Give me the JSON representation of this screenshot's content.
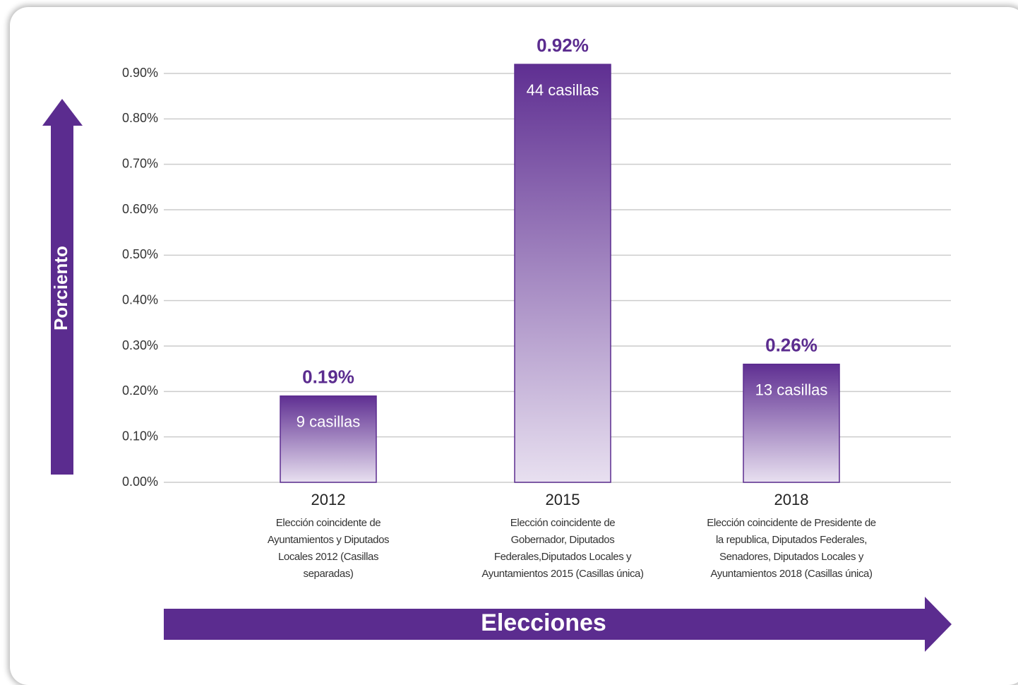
{
  "chart_data": {
    "type": "bar",
    "y_axis_label": "Porciento",
    "x_axis_label": "Elecciones",
    "categories": [
      "2012",
      "2015",
      "2018"
    ],
    "descriptions": [
      "Elección coincidente de Ayuntamientos y Diputados Locales 2012 (Casillas separadas)",
      "Elección coincidente de Gobernador, Diputados Federales,Diputados Locales y Ayuntamientos 2015 (Casillas única)",
      "Elección coincidente de Presidente de la republica, Diputados Federales, Senadores, Diputados Locales y Ayuntamientos 2018 (Casillas única)"
    ],
    "values": [
      0.19,
      0.92,
      0.26
    ],
    "value_labels": [
      "0.19%",
      "0.92%",
      "0.26%"
    ],
    "bar_labels": [
      "9 casillas",
      "44 casillas",
      "13 casillas"
    ],
    "color": "#5b2c8f",
    "ylim": [
      0,
      0.9
    ],
    "yticks": [
      {
        "value": 0,
        "label": "0.00%"
      },
      {
        "value": 0.1,
        "label": "0.10%"
      },
      {
        "value": 0.2,
        "label": "0.20%"
      },
      {
        "value": 0.3,
        "label": "0.30%"
      },
      {
        "value": 0.4,
        "label": "0.40%"
      },
      {
        "value": 0.5,
        "label": "0.50%"
      },
      {
        "value": 0.6,
        "label": "0.60%"
      },
      {
        "value": 0.7,
        "label": "0.70%"
      },
      {
        "value": 0.8,
        "label": "0.80%"
      },
      {
        "value": 0.9,
        "label": "0.90%"
      }
    ],
    "grid": true
  }
}
